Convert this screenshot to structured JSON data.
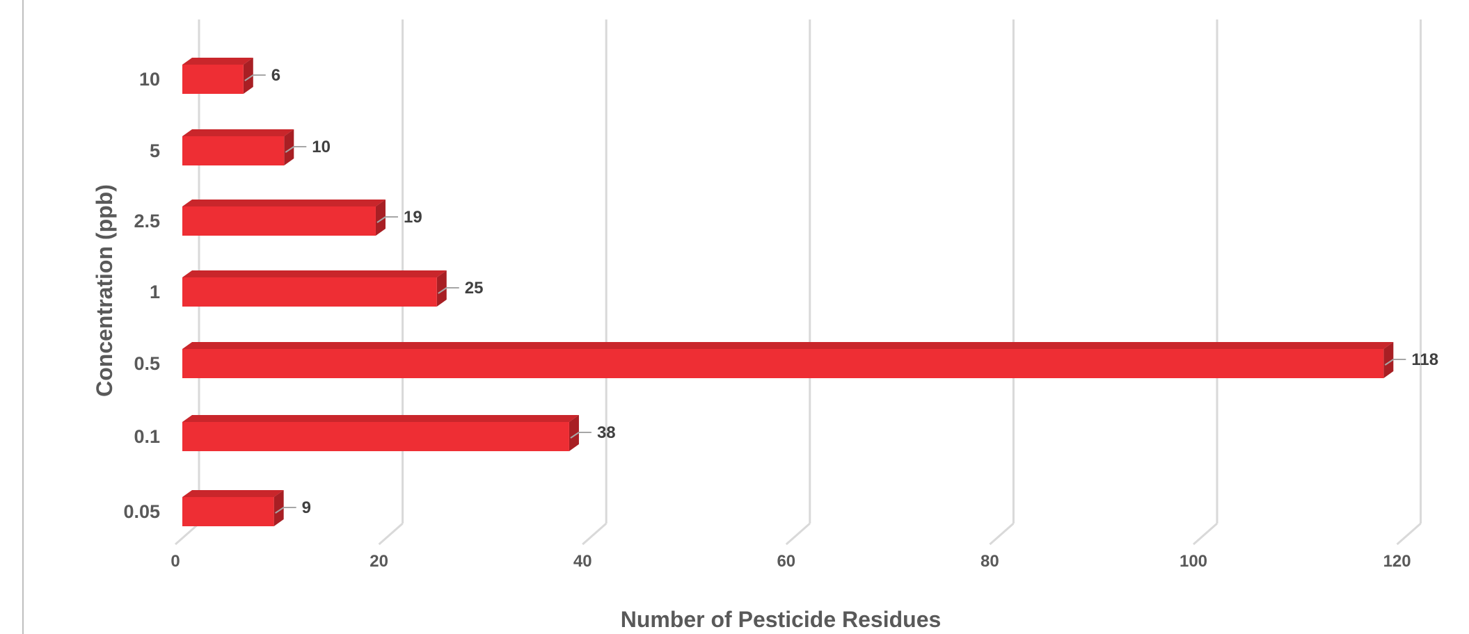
{
  "chart_data": {
    "type": "bar",
    "orientation": "horizontal",
    "style": "3d",
    "categories": [
      "0.05",
      "0.1",
      "0.5",
      "1",
      "2.5",
      "5",
      "10"
    ],
    "values": [
      9,
      38,
      118,
      25,
      19,
      10,
      6
    ],
    "data_labels": [
      "9",
      "38",
      "118",
      "25",
      "19",
      "10",
      "6"
    ],
    "xlabel": "Number of Pesticide Residues",
    "ylabel": "Concentration  (ppb)",
    "xlim": [
      0,
      120
    ],
    "xticks": [
      "0",
      "20",
      "40",
      "60",
      "80",
      "100",
      "120"
    ],
    "grid": true,
    "legend": "none",
    "colors": {
      "bar_front": "#ee2e34",
      "bar_top": "#c9262b",
      "bar_side": "#a81f24",
      "gridline": "#d9d9d9",
      "leader_line": "#a6a6a6",
      "left_border": "#bfbfbf"
    }
  }
}
